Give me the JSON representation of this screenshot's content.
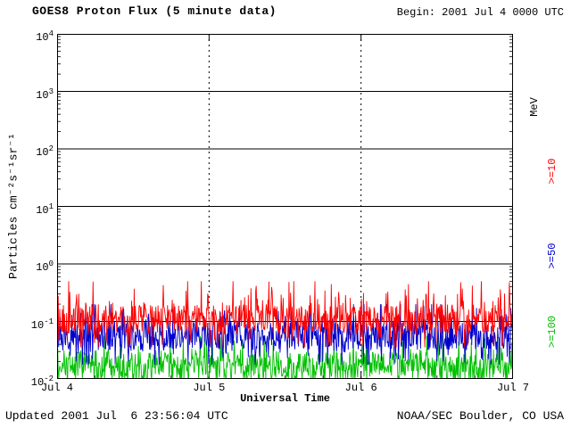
{
  "header": {
    "begin_label": "Begin: 2001 Jul 4 0000 UTC"
  },
  "footer": {
    "updated": "Updated 2001 Jul  6 23:56:04 UTC",
    "source": "NOAA/SEC Boulder, CO USA"
  },
  "chart_data": {
    "type": "line",
    "title": "GOES8 Proton Flux (5 minute data)",
    "xlabel": "Universal Time",
    "ylabel": "Particles cm⁻²s⁻¹sr⁻¹",
    "right_axis_label": "MeV",
    "x_ticks": [
      "Jul 4",
      "Jul 5",
      "Jul 6",
      "Jul 7"
    ],
    "x_range_days": 3,
    "y_scale": "log10",
    "y_log_range": [
      -2,
      4
    ],
    "y_tick_exponents": [
      4,
      3,
      2,
      1,
      0,
      -1,
      -2
    ],
    "grid": {
      "horizontal": "solid-every-decade",
      "vertical": "dashed-every-day"
    },
    "legend_position": "right-rotated",
    "series": [
      {
        "name": ">=10",
        "color": "#ff0000",
        "log10_median": -0.95,
        "log10_min": -1.45,
        "log10_max": -0.3
      },
      {
        "name": ">=50",
        "color": "#0000cd",
        "log10_median": -1.25,
        "log10_min": -1.75,
        "log10_max": -0.7
      },
      {
        "name": ">=100",
        "color": "#00c000",
        "log10_median": -1.78,
        "log10_min": -2.0,
        "log10_max": -1.25
      }
    ],
    "n_points": 864,
    "noise_seed": 20010704
  }
}
